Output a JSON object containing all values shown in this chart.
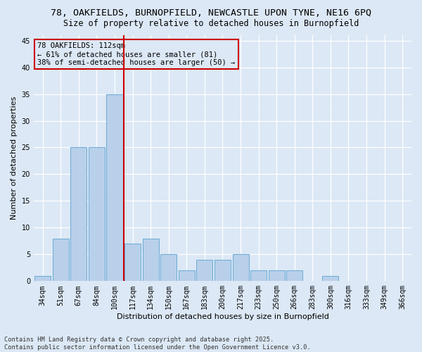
{
  "title_line1": "78, OAKFIELDS, BURNOPFIELD, NEWCASTLE UPON TYNE, NE16 6PQ",
  "title_line2": "Size of property relative to detached houses in Burnopfield",
  "xlabel": "Distribution of detached houses by size in Burnopfield",
  "ylabel": "Number of detached properties",
  "bar_labels": [
    "34sqm",
    "51sqm",
    "67sqm",
    "84sqm",
    "100sqm",
    "117sqm",
    "134sqm",
    "150sqm",
    "167sqm",
    "183sqm",
    "200sqm",
    "217sqm",
    "233sqm",
    "250sqm",
    "266sqm",
    "283sqm",
    "300sqm",
    "316sqm",
    "333sqm",
    "349sqm",
    "366sqm"
  ],
  "bar_values": [
    1,
    8,
    25,
    25,
    35,
    7,
    8,
    5,
    2,
    4,
    4,
    5,
    2,
    2,
    2,
    0,
    1,
    0,
    0,
    0,
    0
  ],
  "bar_color": "#b8d0ea",
  "bar_edge_color": "#6aaad4",
  "vline_index": 5,
  "vline_color": "#cc0000",
  "annotation_text": "78 OAKFIELDS: 112sqm\n← 61% of detached houses are smaller (81)\n38% of semi-detached houses are larger (50) →",
  "annotation_box_edge": "#cc0000",
  "annotation_box_bg": "#dce8f5",
  "ylim": [
    0,
    46
  ],
  "yticks": [
    0,
    5,
    10,
    15,
    20,
    25,
    30,
    35,
    40,
    45
  ],
  "background_color": "#dce8f5",
  "plot_bg_color": "#dce8f5",
  "grid_color": "#ffffff",
  "footer_line1": "Contains HM Land Registry data © Crown copyright and database right 2025.",
  "footer_line2": "Contains public sector information licensed under the Open Government Licence v3.0.",
  "title_fontsize": 9.5,
  "subtitle_fontsize": 8.5,
  "axis_label_fontsize": 8,
  "tick_fontsize": 7,
  "annotation_fontsize": 7.5,
  "footer_fontsize": 6.2
}
